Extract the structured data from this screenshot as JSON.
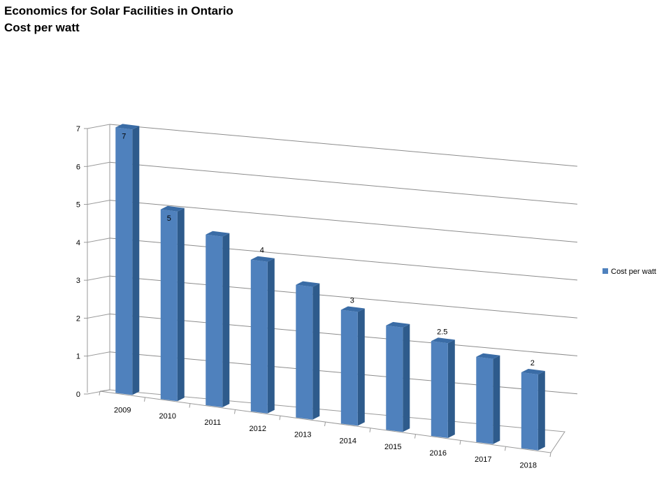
{
  "title_lines": [
    "Economics for Solar Facilities in Ontario",
    "Cost per watt"
  ],
  "chart_data": {
    "type": "bar",
    "categories": [
      "2009",
      "2010",
      "2011",
      "2012",
      "2013",
      "2014",
      "2015",
      "2016",
      "2017",
      "2018"
    ],
    "series": [
      {
        "name": "Cost per watt",
        "color": "#4F81BD",
        "values": [
          7,
          5,
          4.5,
          4,
          3.5,
          3,
          2.75,
          2.5,
          2.25,
          2
        ]
      }
    ],
    "data_labels": [
      "7",
      "5",
      "",
      "4",
      "",
      "3",
      "",
      "2.5",
      "",
      "2"
    ],
    "y_ticks": [
      "0",
      "1",
      "2",
      "3",
      "4",
      "5",
      "6",
      "7"
    ],
    "ylim": [
      0,
      7
    ],
    "grid": true,
    "legend_position": "right",
    "style": "3d-column"
  }
}
